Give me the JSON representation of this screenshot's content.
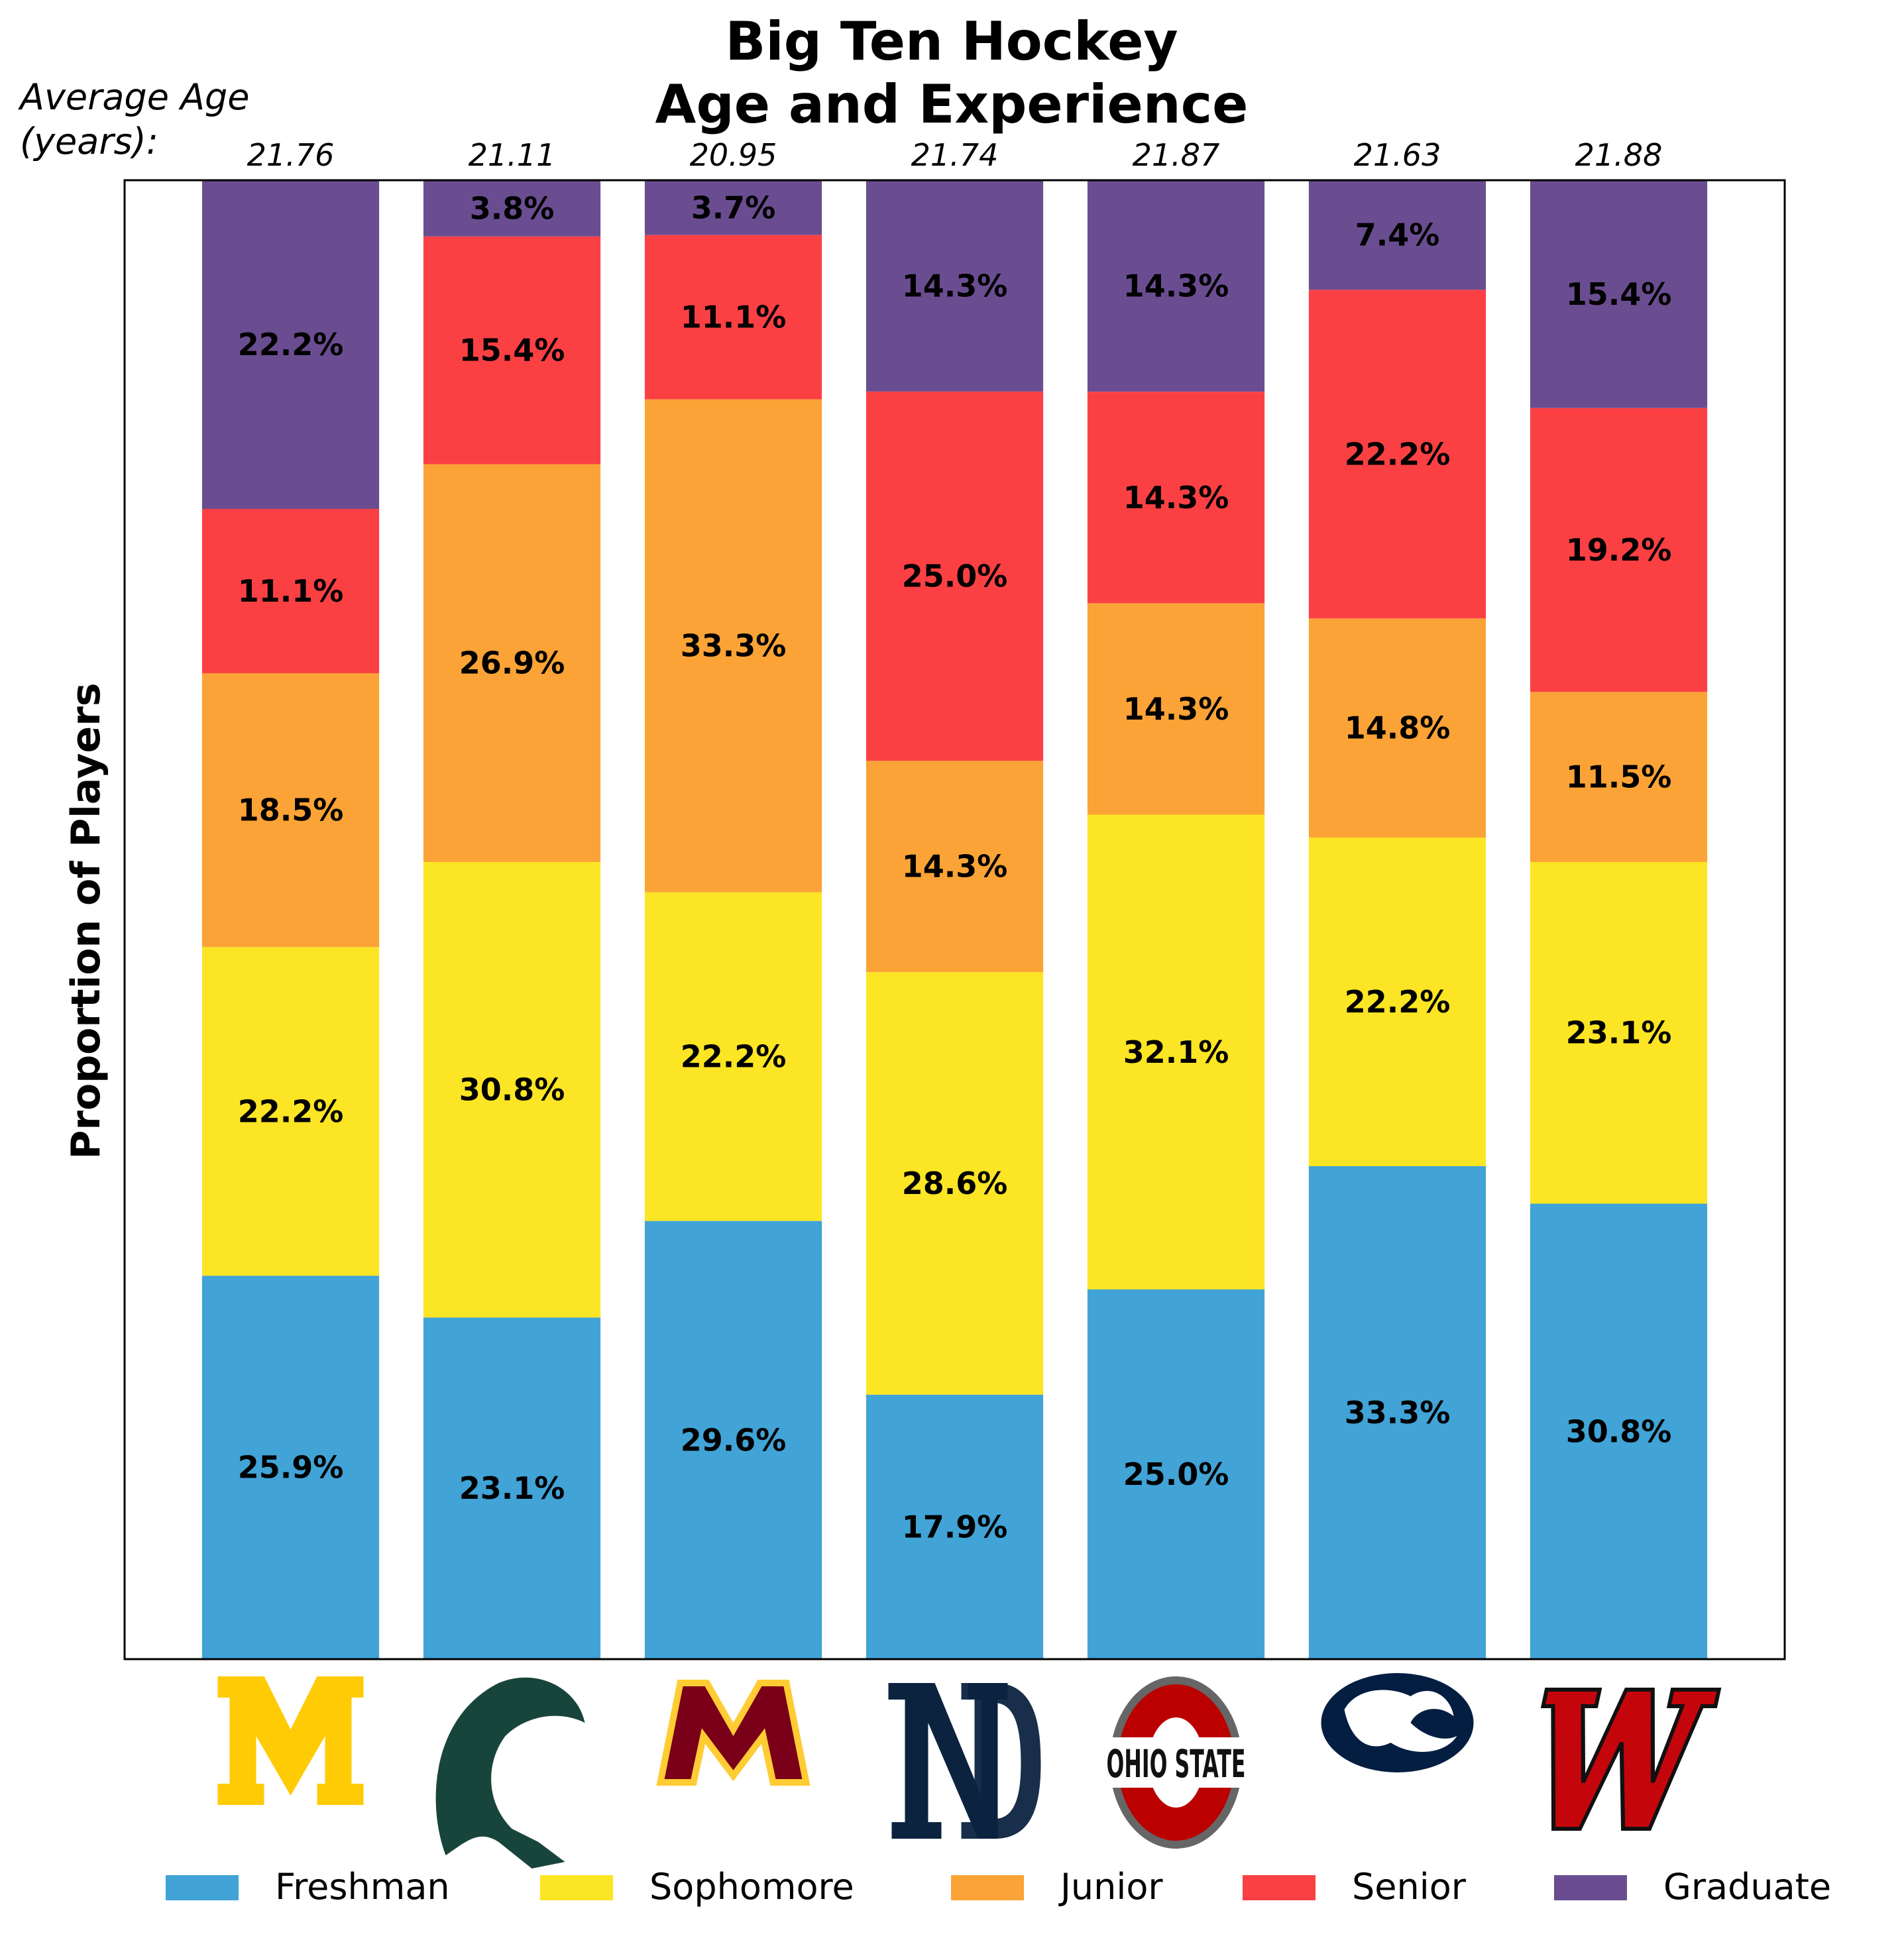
{
  "chart_data": {
    "type": "bar",
    "stacked": true,
    "normalized": true,
    "title": [
      "Big Ten Hockey",
      "Age and Experience"
    ],
    "ylabel": "Proportion of Players",
    "xlabel": "",
    "ylim": [
      0,
      1
    ],
    "avg_age_header": [
      "Average Age",
      "(years):"
    ],
    "categories": [
      "Michigan",
      "Michigan State",
      "Minnesota",
      "Notre Dame",
      "Ohio State",
      "Penn State",
      "Wisconsin"
    ],
    "average_age": [
      "21.76",
      "21.11",
      "20.95",
      "21.74",
      "21.87",
      "21.63",
      "21.88"
    ],
    "series": [
      {
        "name": "Freshman",
        "color": "#41a3d6",
        "values": [
          25.9,
          23.1,
          29.6,
          17.9,
          25.0,
          33.3,
          30.8
        ],
        "labels": [
          "25.9%",
          "23.1%",
          "29.6%",
          "17.9%",
          "25.0%",
          "33.3%",
          "30.8%"
        ]
      },
      {
        "name": "Sophomore",
        "color": "#fce524",
        "values": [
          22.2,
          30.8,
          22.2,
          28.6,
          32.1,
          22.2,
          23.1
        ],
        "labels": [
          "22.2%",
          "30.8%",
          "22.2%",
          "28.6%",
          "32.1%",
          "22.2%",
          "23.1%"
        ]
      },
      {
        "name": "Junior",
        "color": "#fba336",
        "values": [
          18.5,
          26.9,
          33.3,
          14.3,
          14.3,
          14.8,
          11.5
        ],
        "labels": [
          "18.5%",
          "26.9%",
          "33.3%",
          "14.3%",
          "14.3%",
          "14.8%",
          "11.5%"
        ]
      },
      {
        "name": "Senior",
        "color": "#fb4044",
        "values": [
          11.1,
          15.4,
          11.1,
          25.0,
          14.3,
          22.2,
          19.2
        ],
        "labels": [
          "11.1%",
          "15.4%",
          "11.1%",
          "25.0%",
          "14.3%",
          "22.2%",
          "19.2%"
        ]
      },
      {
        "name": "Graduate",
        "color": "#6a4d91",
        "values": [
          22.2,
          3.8,
          3.7,
          14.3,
          14.3,
          7.4,
          15.4
        ],
        "labels": [
          "22.2%",
          "3.8%",
          "3.7%",
          "14.3%",
          "14.3%",
          "7.4%",
          "15.4%"
        ]
      }
    ],
    "legend_position": "bottom",
    "grid": false,
    "logos": [
      {
        "icon": "michigan-block-m-logo",
        "text": "",
        "color": "#ffcb05"
      },
      {
        "icon": "michigan-state-spartan-logo",
        "text": "",
        "color": "#18453b"
      },
      {
        "icon": "minnesota-m-logo",
        "text": "",
        "color": "#7a0019",
        "accent": "#ffcc33"
      },
      {
        "icon": "notre-dame-nd-logo",
        "text": "",
        "color": "#0c2340"
      },
      {
        "icon": "ohio-state-logo",
        "text": "OHIO STATE",
        "color": "#bb0000",
        "accent": "#666666"
      },
      {
        "icon": "penn-state-lion-logo",
        "text": "",
        "color": "#041e42"
      },
      {
        "icon": "wisconsin-w-logo",
        "text": "",
        "color": "#c5050c"
      }
    ]
  }
}
